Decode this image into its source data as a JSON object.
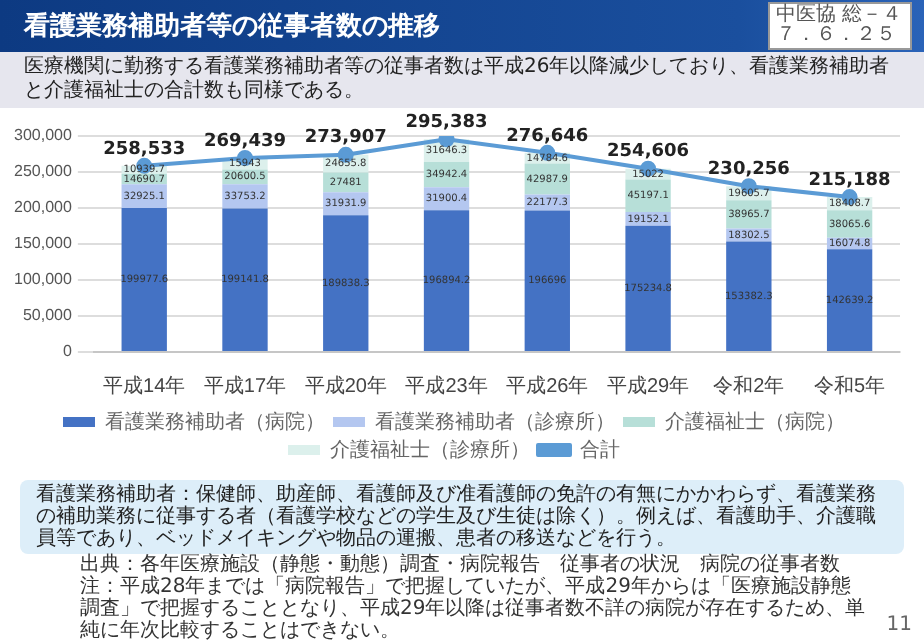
{
  "chart_data": {
    "type": "bar",
    "title": "看護業務補助者等の従事者数の推移",
    "subtitle": "医療機関に勤務する看護業務補助者等の従事者数は平成26年以降減少しており、看護業務補助者と介護福祉士の合計数も同様である。",
    "categories": [
      "平成14年",
      "平成17年",
      "平成20年",
      "平成23年",
      "平成26年",
      "平成29年",
      "令和2年",
      "令和5年"
    ],
    "stacked": true,
    "ylim": [
      0,
      300000
    ],
    "yticks": [
      {
        "value": 0,
        "label": "0"
      },
      {
        "value": 50000,
        "label": "50,000"
      },
      {
        "value": 100000,
        "label": "100,000"
      },
      {
        "value": 150000,
        "label": "150,000"
      },
      {
        "value": 200000,
        "label": "200,000"
      },
      {
        "value": 250000,
        "label": "250,000"
      },
      {
        "value": 300000,
        "label": "300,000"
      }
    ],
    "grid": "y",
    "legend": "bottom",
    "marker": "circle",
    "series": [
      {
        "name": "看護業務補助者（病院）",
        "color": "#4472c4",
        "values": [
          199977.6,
          199141.8,
          189838.3,
          196894.2,
          196696,
          175234.8,
          153382.3,
          142639.2
        ],
        "value_labels": [
          "199977.6",
          "199141.8",
          "189838.3",
          "196894.2",
          "196696",
          "175234.8",
          "153382.3",
          "142639.2"
        ]
      },
      {
        "name": "看護業務補助者（診療所）",
        "color": "#b4c7f0",
        "values": [
          32925.1,
          33753.2,
          31931.9,
          31900.4,
          22177.3,
          19152.1,
          18302.5,
          16074.8
        ],
        "value_labels": [
          "32925.1",
          "33753.2",
          "31931.9",
          "31900.4",
          "22177.3",
          "19152.1",
          "18302.5",
          "16074.8"
        ]
      },
      {
        "name": "介護福祉士（病院）",
        "color": "#b7dfd8",
        "values": [
          14690.7,
          20600.5,
          27481,
          34942.4,
          42987.9,
          45197.1,
          38965.7,
          38065.6
        ],
        "value_labels": [
          "14690.7",
          "20600.5",
          "27481",
          "34942.4",
          "42987.9",
          "45197.1",
          "38965.7",
          "38065.6"
        ]
      },
      {
        "name": "介護福祉士（診療所）",
        "color": "#dcf0ec",
        "values": [
          10939.7,
          15943,
          24655.8,
          31646.3,
          14784.6,
          15022,
          19605.7,
          18408.7
        ],
        "value_labels": [
          "10939.7",
          "15943",
          "24655.8",
          "31646.3",
          "14784.6",
          "15022",
          "19605.7",
          "18408.7"
        ]
      },
      {
        "name": "合計",
        "type": "line",
        "color": "#5b9bd5",
        "values": [
          258533,
          269439,
          273907,
          295383,
          276646,
          254606,
          230256,
          215188
        ],
        "value_labels": [
          "258,533",
          "269,439",
          "273,907",
          "295,383",
          "276,646",
          "254,606",
          "230,256",
          "215,188"
        ]
      }
    ],
    "annotations": [
      "中医協 総－４",
      "７．６．２５",
      "看護業務補助者：保健師、助産師、看護師及び准看護師の免許の有無にかかわらず、看護業務の補助業務に従事する者（看護学校などの学生及び生徒は除く）。例えば、看護助手、介護職員等であり、ベッドメイキングや物品の運搬、患者の移送などを行う。",
      "出典：各年医療施設（静態・動態）調査・病院報告　従事者の状況　病院の従事者数",
      "注：平成28年までは「病院報告」で把握していたが、平成29年からは「医療施設静態調査」で把握することとなり、平成29年以降は従事者数不詳の病院が存在するため、単純に年次比較することはできない。",
      "11"
    ]
  }
}
